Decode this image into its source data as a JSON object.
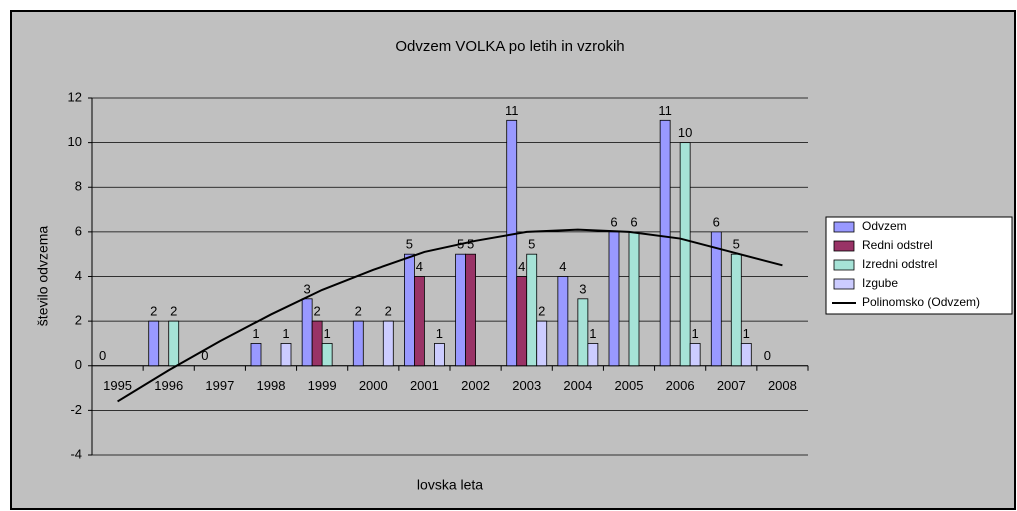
{
  "chart_data": {
    "type": "bar",
    "title": "Odvzem VOLKA po letih in vzrokih",
    "x_label": "lovska leta",
    "y_label": "število odvzema",
    "categories": [
      "1995",
      "1996",
      "1997",
      "1998",
      "1999",
      "2000",
      "2001",
      "2002",
      "2003",
      "2004",
      "2005",
      "2006",
      "2007",
      "2008"
    ],
    "series": [
      {
        "name": "Odvzem",
        "color": "#9999ff",
        "type": "bar",
        "values": [
          0,
          2,
          0,
          1,
          3,
          2,
          5,
          5,
          11,
          4,
          6,
          11,
          6,
          0
        ]
      },
      {
        "name": "Redni odstrel",
        "color": "#993366",
        "type": "bar",
        "values": [
          null,
          null,
          null,
          null,
          2,
          null,
          4,
          5,
          4,
          null,
          null,
          null,
          null,
          null
        ]
      },
      {
        "name": "Izredni odstrel",
        "color": "#a6e3d7",
        "type": "bar",
        "values": [
          null,
          2,
          null,
          null,
          1,
          null,
          null,
          null,
          5,
          3,
          6,
          10,
          5,
          null
        ]
      },
      {
        "name": "Izgube",
        "color": "#ccccff",
        "type": "bar",
        "values": [
          null,
          null,
          null,
          1,
          null,
          2,
          1,
          null,
          2,
          1,
          null,
          1,
          1,
          null
        ]
      },
      {
        "name": "Polinomsko (Odvzem)",
        "color": "#000000",
        "type": "line",
        "values": [
          -1.6,
          -0.2,
          1.1,
          2.3,
          3.4,
          4.3,
          5.1,
          5.6,
          6.0,
          6.1,
          6.0,
          5.7,
          5.1,
          4.5
        ]
      }
    ],
    "ylim": [
      -4,
      12
    ],
    "yticks": [
      -4,
      -2,
      0,
      2,
      4,
      6,
      8,
      10,
      12
    ],
    "grid": true,
    "legend": "right"
  }
}
